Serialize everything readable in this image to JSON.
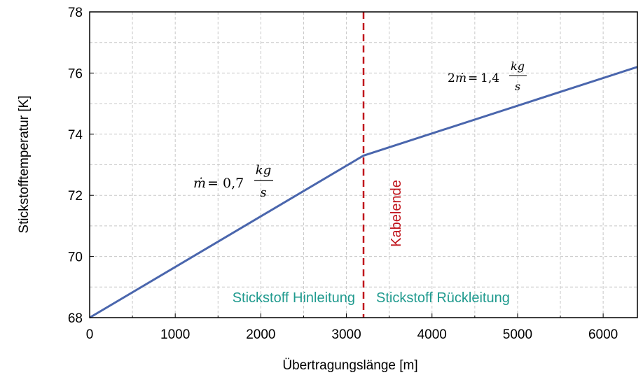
{
  "chart_data": {
    "type": "line",
    "xlabel": "Übertragungslänge [m]",
    "ylabel": "Stickstofftemperatur [K]",
    "xlim": [
      0,
      6400
    ],
    "ylim": [
      68,
      78
    ],
    "xticks": [
      0,
      1000,
      2000,
      3000,
      4000,
      5000,
      6000
    ],
    "yticks": [
      68,
      70,
      72,
      74,
      76,
      78
    ],
    "x_minor_step": 500,
    "y_minor_step": 1,
    "grid": true,
    "series": [
      {
        "x": [
          0,
          3200,
          6400
        ],
        "y": [
          68.0,
          73.3,
          76.2
        ],
        "color": "#4a66ad"
      }
    ],
    "marker_line": {
      "x": 3200,
      "label": "Kabelende",
      "color": "#c0141c"
    },
    "annotations": {
      "left_region": "Stickstoff Hinleitung",
      "right_region": "Stickstoff Rückleitung",
      "region_color": "#1f9a8e",
      "flow1": {
        "lhs": "ṁ",
        "equals": "=",
        "value": "0,7",
        "num": "kg",
        "den": "s"
      },
      "flow2": {
        "prefix": "2",
        "lhs": "ṁ",
        "equals": "=",
        "value": "1,4",
        "num": "kg",
        "den": "s"
      }
    }
  }
}
